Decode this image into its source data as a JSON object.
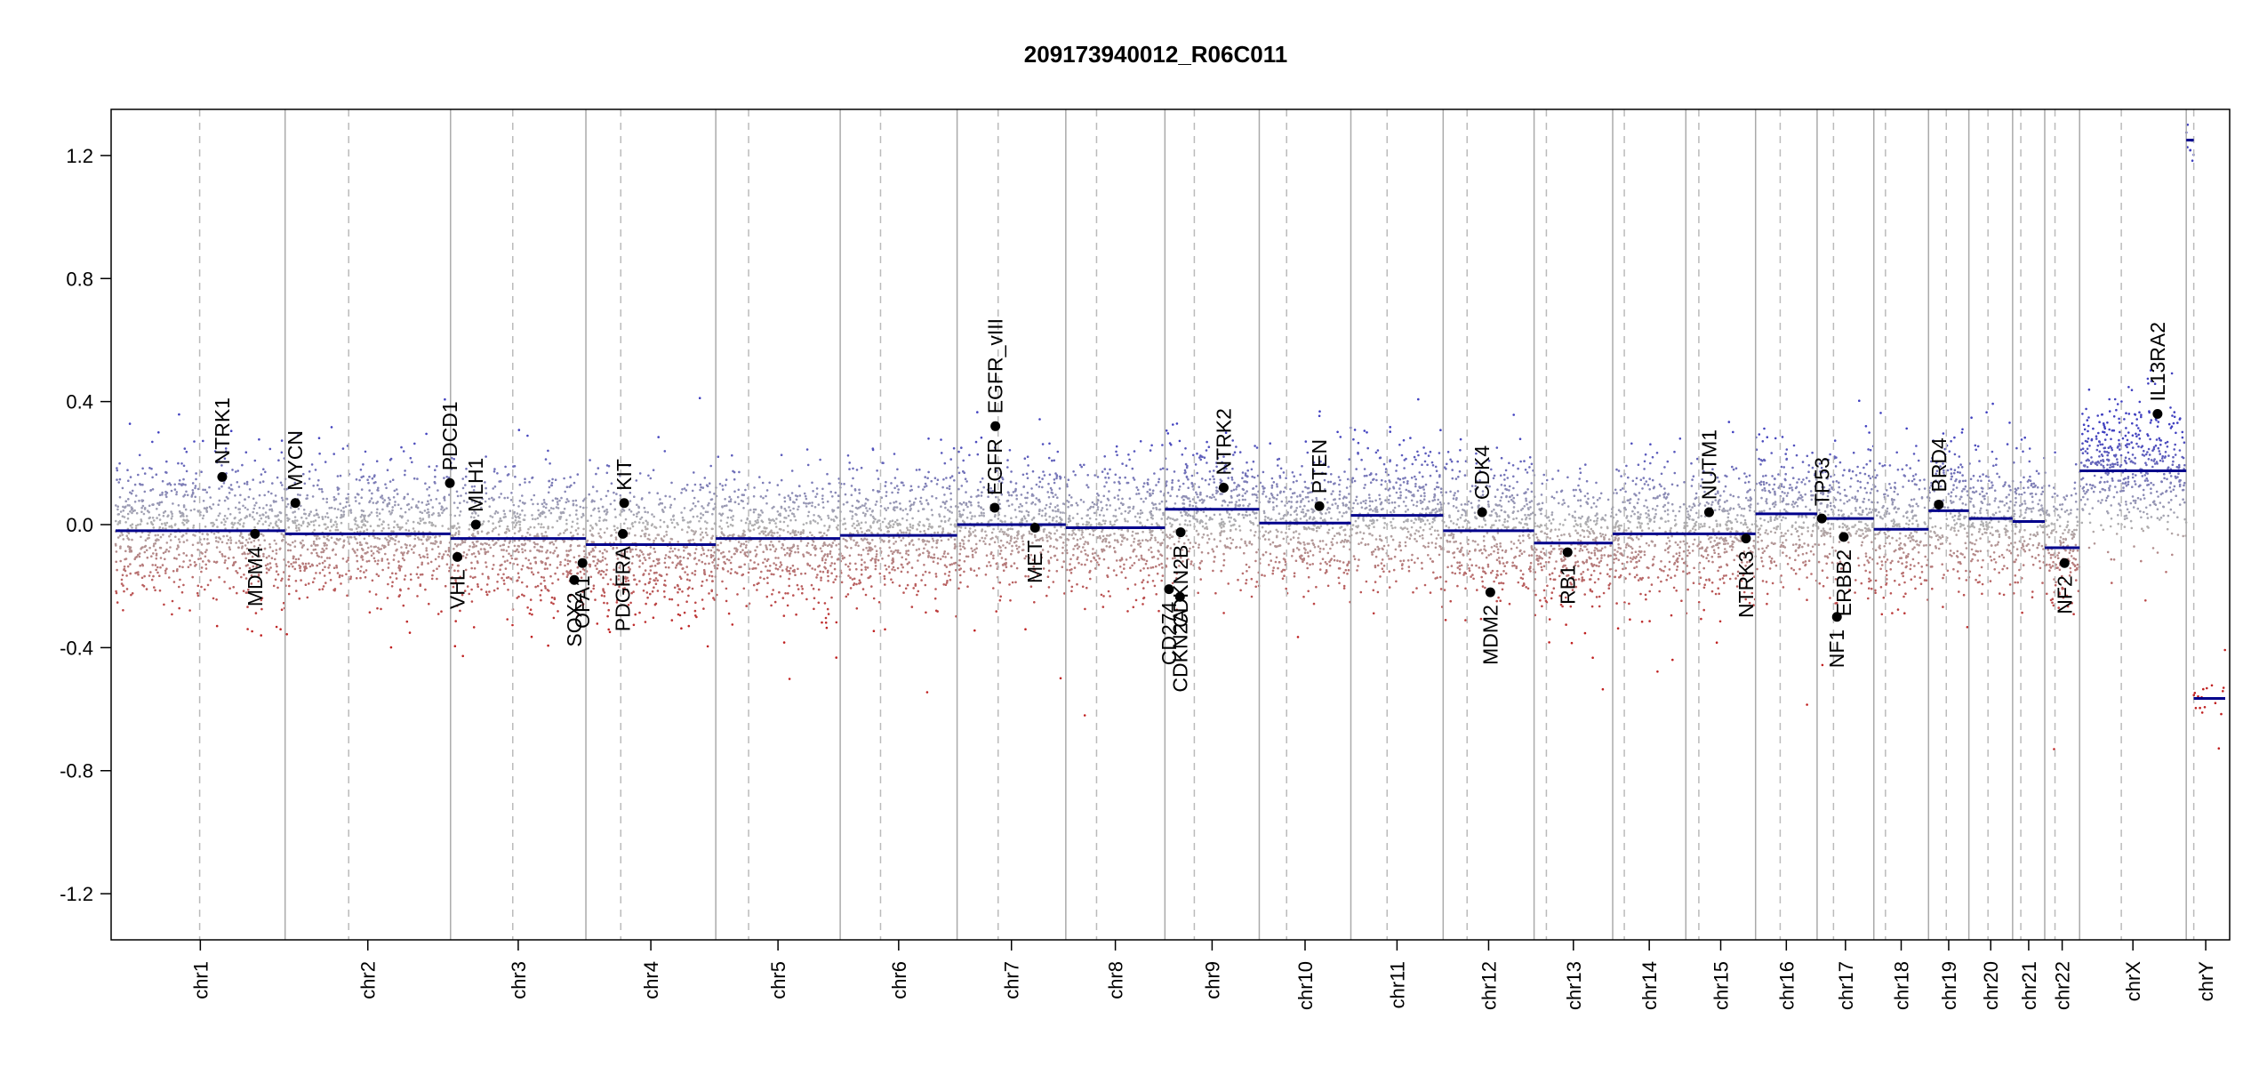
{
  "chart_data": {
    "type": "scatter",
    "title": "209173940012_R06C011",
    "xlabel": "",
    "ylabel": "",
    "ylim": [
      -1.35,
      1.35
    ],
    "yticks": [
      "-1.2",
      "-0.8",
      "-0.4",
      "0.0",
      "0.4",
      "0.8",
      "1.2"
    ],
    "yticks_values": [
      -1.2,
      -0.8,
      -0.4,
      0.0,
      0.4,
      0.8,
      1.2
    ],
    "colors": {
      "segment": "#00008b",
      "gain": "#4040c0",
      "loss": "#c02020",
      "neutral": "#b0b0b0",
      "boundary": "#aaaaaa",
      "centromere": "#bbbbbb",
      "gene": "#000000"
    },
    "chromosomes": [
      {
        "name": "chr1",
        "start": 0,
        "end": 248,
        "centromere": 123,
        "segment": -0.02
      },
      {
        "name": "chr2",
        "start": 248,
        "end": 490,
        "centromere": 341,
        "segment": -0.03
      },
      {
        "name": "chr3",
        "start": 490,
        "end": 688,
        "centromere": 581,
        "segment": -0.045
      },
      {
        "name": "chr4",
        "start": 688,
        "end": 878,
        "centromere": 739,
        "segment": -0.065
      },
      {
        "name": "chr5",
        "start": 878,
        "end": 1060,
        "centromere": 926,
        "segment": -0.045
      },
      {
        "name": "chr6",
        "start": 1060,
        "end": 1231,
        "centromere": 1119,
        "segment": -0.035
      },
      {
        "name": "chr7",
        "start": 1231,
        "end": 1390,
        "centromere": 1291,
        "segment": 0.0
      },
      {
        "name": "chr8",
        "start": 1390,
        "end": 1535,
        "centromere": 1435,
        "segment": -0.01
      },
      {
        "name": "chr9",
        "start": 1535,
        "end": 1673,
        "centromere": 1578,
        "segment": 0.05
      },
      {
        "name": "chr10",
        "start": 1673,
        "end": 1807,
        "centromere": 1713,
        "segment": 0.005
      },
      {
        "name": "chr11",
        "start": 1807,
        "end": 1942,
        "centromere": 1860,
        "segment": 0.03
      },
      {
        "name": "chr12",
        "start": 1942,
        "end": 2075,
        "centromere": 1977,
        "segment": -0.02
      },
      {
        "name": "chr13",
        "start": 2075,
        "end": 2190,
        "centromere": 2093,
        "segment": -0.06
      },
      {
        "name": "chr14",
        "start": 2190,
        "end": 2297,
        "centromere": 2207,
        "segment": -0.03
      },
      {
        "name": "chr15",
        "start": 2297,
        "end": 2399,
        "centromere": 2316,
        "segment": -0.03
      },
      {
        "name": "chr16",
        "start": 2399,
        "end": 2489,
        "centromere": 2435,
        "segment": 0.035
      },
      {
        "name": "chr17",
        "start": 2489,
        "end": 2572,
        "centromere": 2513,
        "segment": 0.02
      },
      {
        "name": "chr18",
        "start": 2572,
        "end": 2652,
        "centromere": 2589,
        "segment": -0.015
      },
      {
        "name": "chr19",
        "start": 2652,
        "end": 2711,
        "centromere": 2678,
        "segment": 0.045
      },
      {
        "name": "chr20",
        "start": 2711,
        "end": 2775,
        "centromere": 2739,
        "segment": 0.02
      },
      {
        "name": "chr21",
        "start": 2775,
        "end": 2822,
        "centromere": 2787,
        "segment": 0.01
      },
      {
        "name": "chr22",
        "start": 2822,
        "end": 2873,
        "centromere": 2837,
        "segment": -0.075
      },
      {
        "name": "chrX",
        "start": 2873,
        "end": 3029,
        "centromere": 2934,
        "segment": 0.175
      },
      {
        "name": "chrY",
        "start": 3029,
        "end": 3086,
        "centromere": 3040,
        "segment": null,
        "segments": [
          {
            "from": 3029,
            "to": 3040,
            "value": 1.25
          },
          {
            "from": 3040,
            "to": 3086,
            "value": -0.565
          }
        ]
      }
    ],
    "genes": [
      {
        "name": "NTRK1",
        "pos": 156,
        "value": 0.155,
        "label_side": "above"
      },
      {
        "name": "MDM4",
        "pos": 204,
        "value": -0.03,
        "label_side": "below"
      },
      {
        "name": "MYCN",
        "pos": 263,
        "value": 0.07,
        "label_side": "above"
      },
      {
        "name": "PDCD1",
        "pos": 489,
        "value": 0.135,
        "label_side": "above"
      },
      {
        "name": "VHL",
        "pos": 500,
        "value": -0.105,
        "label_side": "below"
      },
      {
        "name": "MLH1",
        "pos": 527,
        "value": 0.0,
        "label_side": "above"
      },
      {
        "name": "SOX2",
        "pos": 671,
        "value": -0.18,
        "label_side": "below"
      },
      {
        "name": "OPA1",
        "pos": 683,
        "value": -0.125,
        "label_side": "below"
      },
      {
        "name": "PDGFRA",
        "pos": 742,
        "value": -0.03,
        "label_side": "below"
      },
      {
        "name": "KIT",
        "pos": 744,
        "value": 0.07,
        "label_side": "above"
      },
      {
        "name": "EGFR",
        "pos": 1286,
        "value": 0.055,
        "label_side": "above"
      },
      {
        "name": "EGFR_vIII",
        "pos": 1287,
        "value": 0.32,
        "label_side": "above"
      },
      {
        "name": "MET",
        "pos": 1345,
        "value": -0.01,
        "label_side": "below"
      },
      {
        "name": "CD274",
        "pos": 1541,
        "value": -0.21,
        "label_side": "below"
      },
      {
        "name": "CDKN2A",
        "pos": 1557,
        "value": -0.235,
        "label_side": "below"
      },
      {
        "name": "CDKN2B",
        "pos": 1558,
        "value": -0.025,
        "label_side": "below"
      },
      {
        "name": "NTRK2",
        "pos": 1621,
        "value": 0.12,
        "label_side": "above"
      },
      {
        "name": "PTEN",
        "pos": 1761,
        "value": 0.06,
        "label_side": "above"
      },
      {
        "name": "CDK4",
        "pos": 1999,
        "value": 0.04,
        "label_side": "above"
      },
      {
        "name": "MDM2",
        "pos": 2011,
        "value": -0.22,
        "label_side": "below"
      },
      {
        "name": "RB1",
        "pos": 2124,
        "value": -0.09,
        "label_side": "below"
      },
      {
        "name": "NUTM1",
        "pos": 2331,
        "value": 0.04,
        "label_side": "above"
      },
      {
        "name": "NTRK3",
        "pos": 2385,
        "value": -0.045,
        "label_side": "below"
      },
      {
        "name": "TP53",
        "pos": 2496,
        "value": 0.02,
        "label_side": "above"
      },
      {
        "name": "NF1",
        "pos": 2518,
        "value": -0.3,
        "label_side": "below"
      },
      {
        "name": "ERBB2",
        "pos": 2528,
        "value": -0.04,
        "label_side": "below"
      },
      {
        "name": "BRD4",
        "pos": 2667,
        "value": 0.065,
        "label_side": "above"
      },
      {
        "name": "NF2",
        "pos": 2851,
        "value": -0.125,
        "label_side": "below"
      },
      {
        "name": "IL13RA2",
        "pos": 2987,
        "value": 0.36,
        "label_side": "above"
      }
    ]
  }
}
